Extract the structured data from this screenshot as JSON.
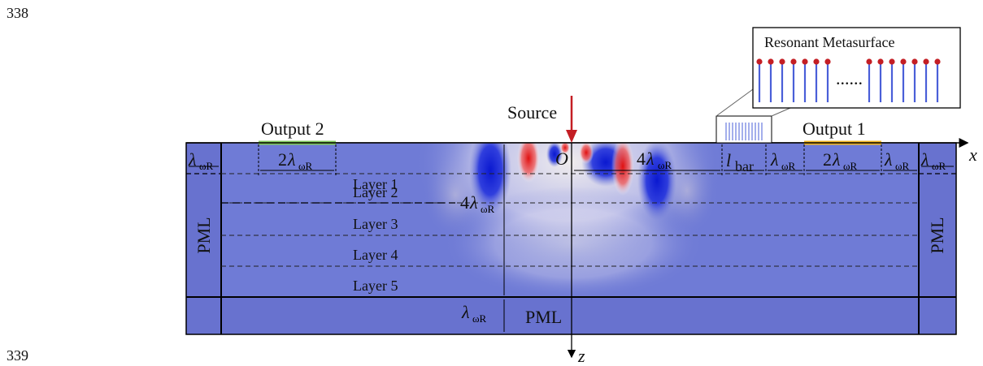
{
  "line_numbers": [
    "338",
    "339"
  ],
  "title_box": {
    "label": "Resonant Metasurface",
    "dots": "......"
  },
  "source_label": "Source",
  "outputs": [
    {
      "label": "Output 2",
      "color": "#7fc85a"
    },
    {
      "label": "Output 1",
      "color": "#f0b41e"
    }
  ],
  "layers": [
    "Layer 1",
    "Layer 2",
    "Layer 3",
    "Layer 4",
    "Layer 5"
  ],
  "pml_label": "PML",
  "axes": {
    "x": "x",
    "z": "z",
    "origin": "O"
  },
  "dimensions": {
    "lambda": "λ",
    "sub": "ωR",
    "two": "2",
    "four": "4",
    "l_bar_main": "l",
    "l_bar_sub": "bar"
  },
  "colors": {
    "domain": "#6f7bd6",
    "pml": "#6872cf",
    "dot": "#c41e24",
    "bar": "#4a5fd8",
    "arrow": "#c41e24",
    "wave_red": "#e01818",
    "wave_blue": "#0a22d6"
  }
}
